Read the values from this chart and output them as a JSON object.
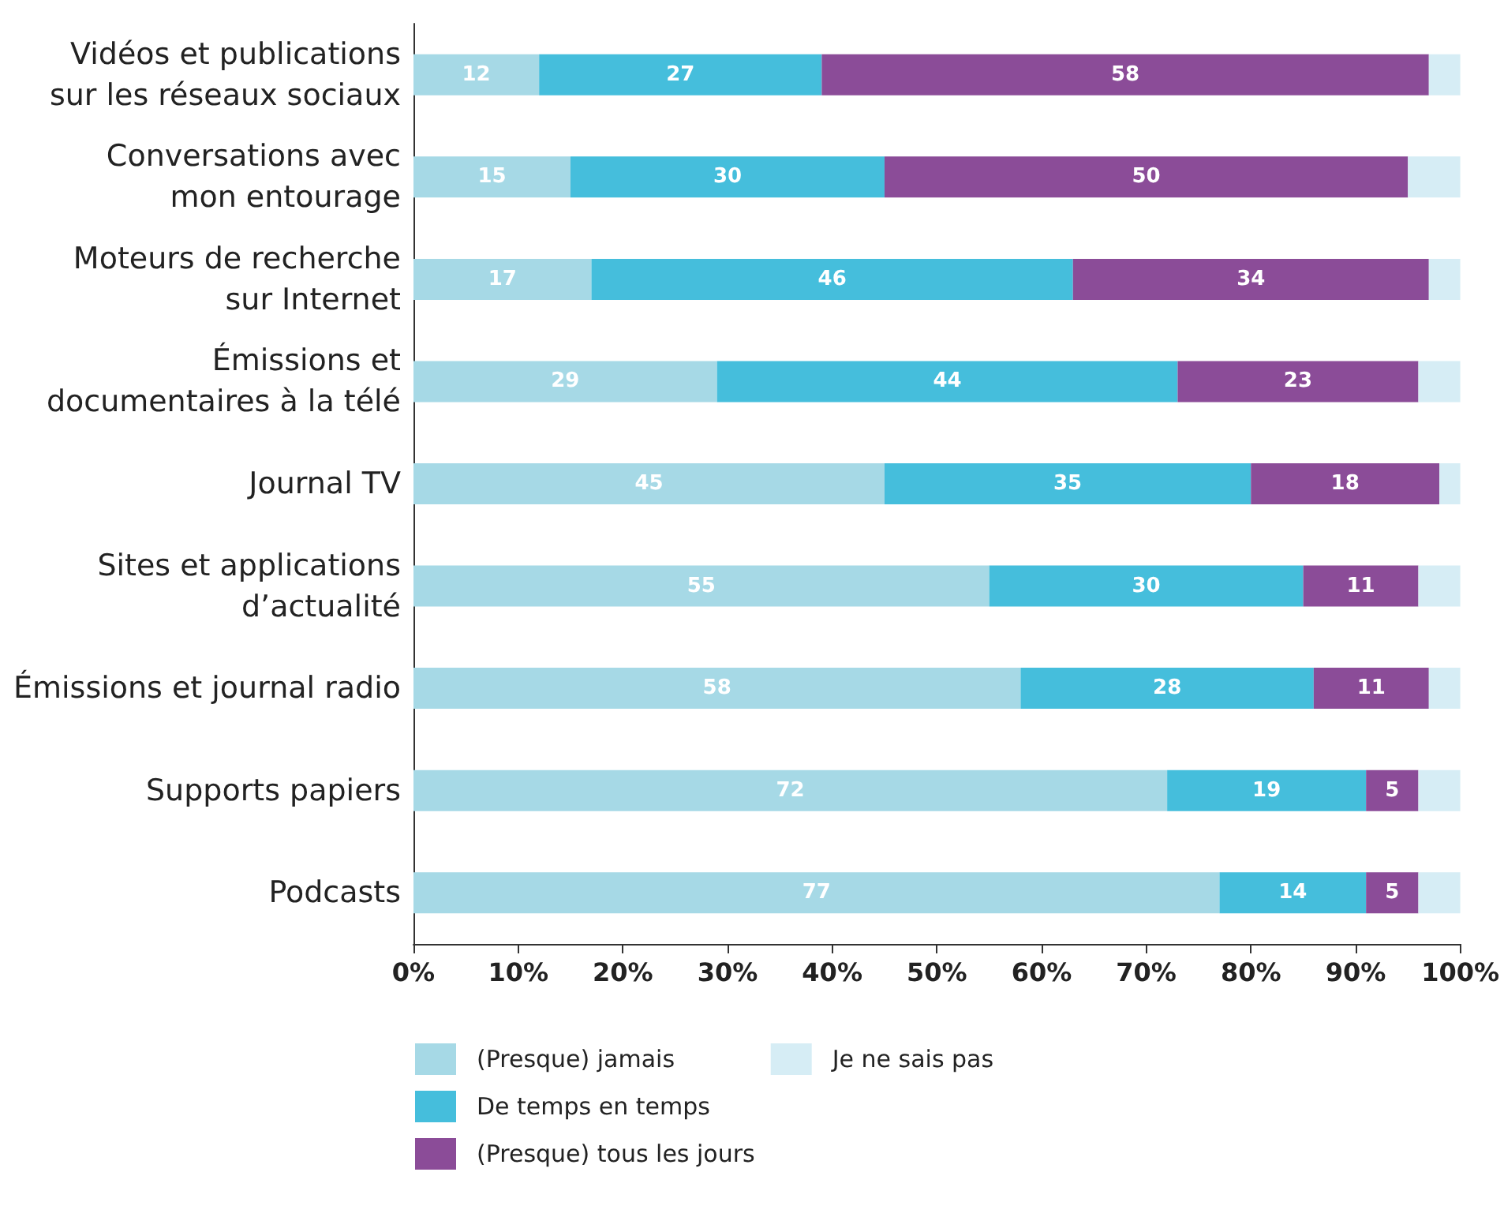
{
  "chart_data": {
    "type": "bar",
    "orientation": "horizontal",
    "stacked": true,
    "categories": [
      "Vidéos et publications\nsur les réseaux sociaux",
      "Conversations avec\nmon entourage",
      "Moteurs de recherche\nsur Internet",
      "Émissions et\ndocumentaires à la télé",
      "Journal TV",
      "Sites et applications\nd’actualité",
      "Émissions et journal radio",
      "Supports papiers",
      "Podcasts"
    ],
    "series": [
      {
        "name": "(Presque) jamais",
        "color": "#a6d9e6",
        "values": [
          12,
          15,
          17,
          29,
          45,
          55,
          58,
          72,
          77
        ],
        "value_labels": [
          "12",
          "15",
          "17",
          "29",
          "45",
          "55",
          "58",
          "72",
          "77"
        ]
      },
      {
        "name": "De temps en temps",
        "color": "#45bedc",
        "values": [
          27,
          30,
          46,
          44,
          35,
          30,
          28,
          19,
          14
        ],
        "value_labels": [
          "27",
          "30",
          "46",
          "44",
          "35",
          "30",
          "28",
          "19",
          "14"
        ]
      },
      {
        "name": "(Presque) tous les jours",
        "color": "#8b4c98",
        "values": [
          58,
          50,
          34,
          23,
          18,
          11,
          11,
          5,
          5
        ],
        "value_labels": [
          "58",
          "50",
          "34",
          "23",
          "18",
          "11",
          "11",
          "5",
          "5"
        ]
      },
      {
        "name": "Je ne sais pas",
        "color": "#d6edf5",
        "values": [
          3,
          5,
          3,
          4,
          2,
          4,
          3,
          4,
          4
        ]
      }
    ],
    "xlim": [
      0,
      100
    ],
    "xticks": [
      {
        "value": 0,
        "label": "0%"
      },
      {
        "value": 10,
        "label": "10%"
      },
      {
        "value": 20,
        "label": "20%"
      },
      {
        "value": 30,
        "label": "30%"
      },
      {
        "value": 40,
        "label": "40%"
      },
      {
        "value": 50,
        "label": "50%"
      },
      {
        "value": 60,
        "label": "60%"
      },
      {
        "value": 70,
        "label": "70%"
      },
      {
        "value": 80,
        "label": "80%"
      },
      {
        "value": 90,
        "label": "90%"
      },
      {
        "value": 100,
        "label": "100%"
      }
    ],
    "grid": false,
    "legend": "bottom left"
  }
}
